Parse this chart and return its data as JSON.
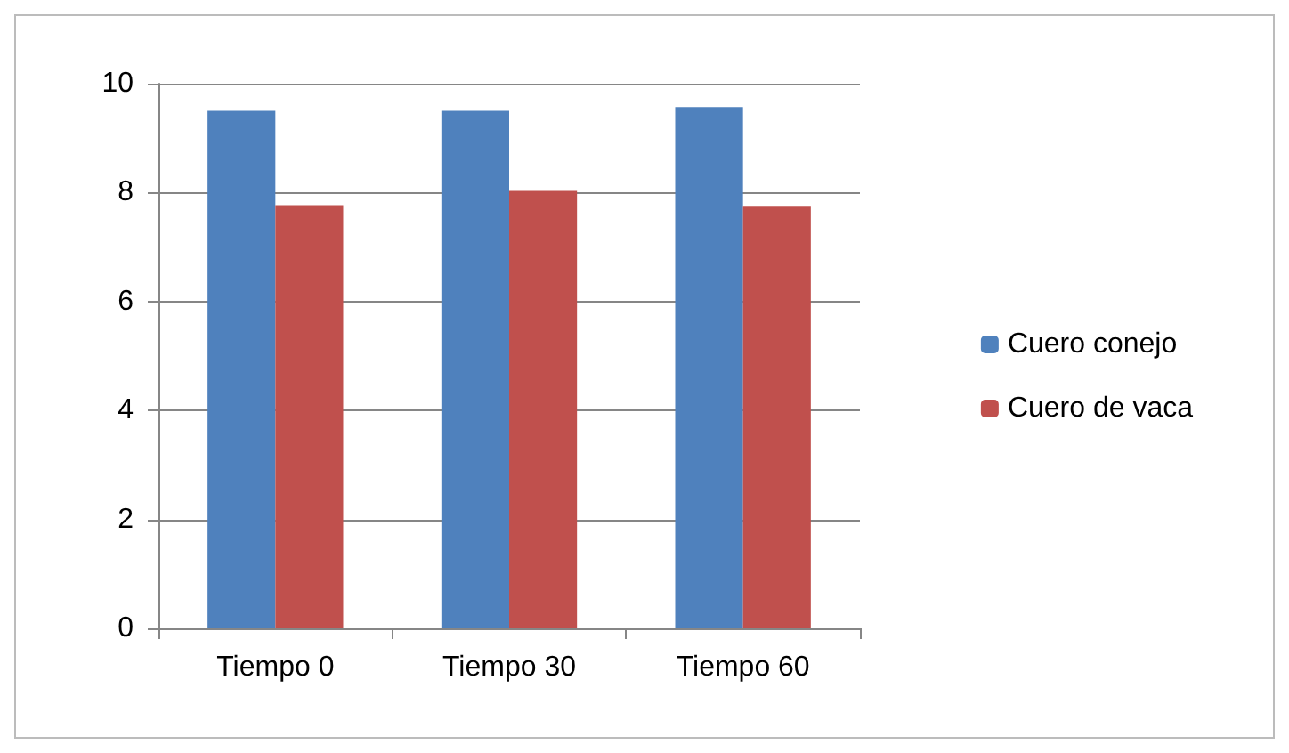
{
  "chart_data": {
    "type": "bar",
    "categories": [
      "Tiempo 0",
      "Tiempo 30",
      "Tiempo 60"
    ],
    "series": [
      {
        "name": "Cuero conejo",
        "color": "#4f81bd",
        "values": [
          9.5,
          9.5,
          9.57
        ]
      },
      {
        "name": "Cuero de vaca",
        "color": "#c0504d",
        "values": [
          7.77,
          8.03,
          7.74
        ]
      }
    ],
    "ylim": [
      0,
      10
    ],
    "yticks": [
      0,
      2,
      4,
      6,
      8,
      10
    ],
    "grid": "y",
    "legend": "right"
  }
}
